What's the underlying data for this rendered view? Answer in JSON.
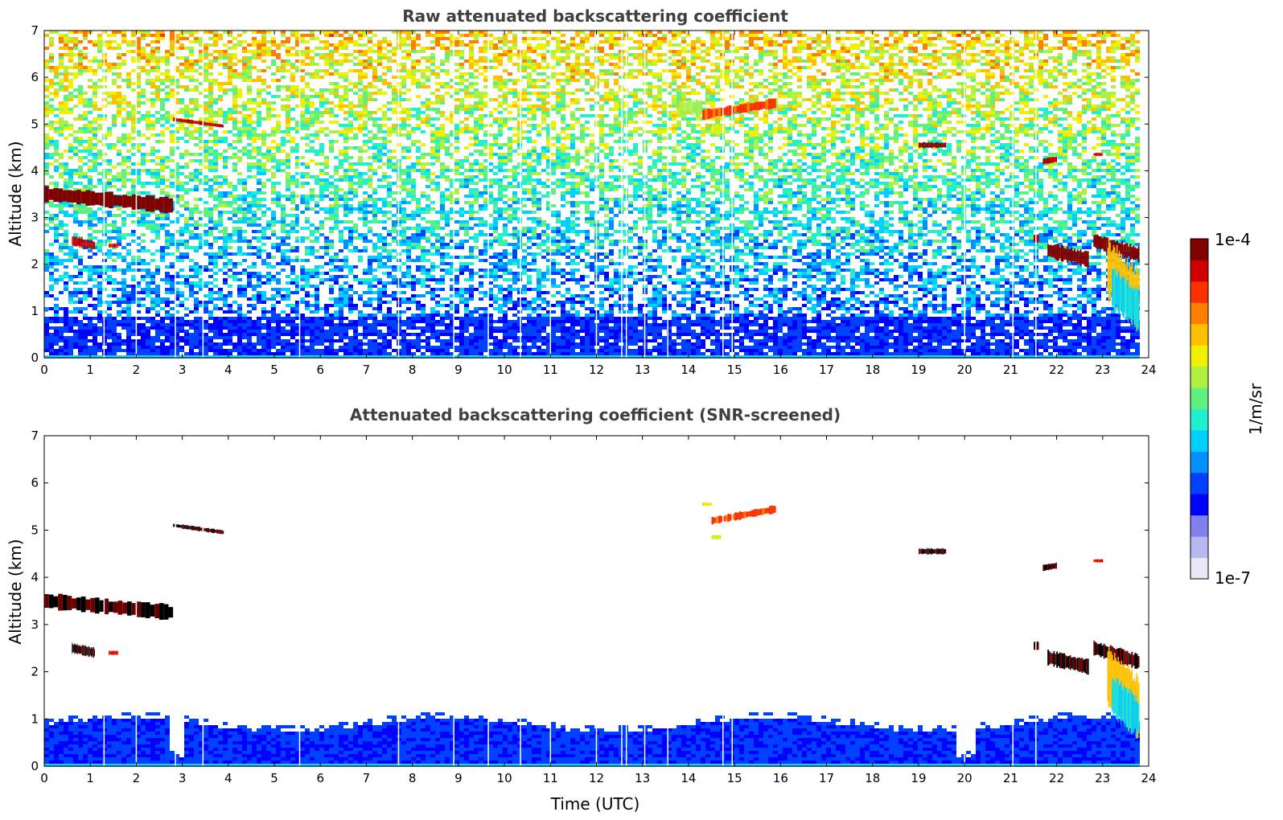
{
  "chart_data": [
    {
      "type": "heatmap",
      "title": "Raw attenuated backscattering coefficient",
      "xlabel": "",
      "ylabel": "Altitude (km)",
      "xlim": [
        0,
        24
      ],
      "ylim": [
        0,
        7
      ],
      "xticks": [
        "0",
        "1",
        "2",
        "3",
        "4",
        "5",
        "6",
        "7",
        "8",
        "9",
        "10",
        "11",
        "12",
        "13",
        "14",
        "15",
        "16",
        "17",
        "18",
        "19",
        "20",
        "21",
        "22",
        "23",
        "24"
      ],
      "yticks": [
        "0",
        "1",
        "2",
        "3",
        "4",
        "5",
        "6",
        "7"
      ],
      "screened": false,
      "features": [
        {
          "x0": 0.0,
          "x1": 2.8,
          "y_start": 3.5,
          "y_end": 3.25,
          "thickness": 0.3,
          "level": 1.0
        },
        {
          "x0": 0.6,
          "x1": 1.1,
          "y_start": 2.5,
          "y_end": 2.4,
          "thickness": 0.2,
          "level": 0.95
        },
        {
          "x0": 1.4,
          "x1": 1.6,
          "y_start": 2.4,
          "y_end": 2.4,
          "thickness": 0.08,
          "level": 0.9
        },
        {
          "x0": 2.8,
          "x1": 3.9,
          "y_start": 5.1,
          "y_end": 4.95,
          "thickness": 0.08,
          "level": 0.95
        },
        {
          "x0": 14.3,
          "x1": 15.9,
          "y_start": 5.2,
          "y_end": 5.45,
          "thickness": 0.2,
          "level": 0.85
        },
        {
          "x0": 13.8,
          "x1": 14.3,
          "y_start": 5.35,
          "y_end": 5.35,
          "thickness": 0.3,
          "level": 0.6
        },
        {
          "x0": 14.5,
          "x1": 14.8,
          "y_start": 4.9,
          "y_end": 4.9,
          "thickness": 0.2,
          "level": 0.65
        },
        {
          "x0": 19.0,
          "x1": 19.6,
          "y_start": 4.55,
          "y_end": 4.55,
          "thickness": 0.12,
          "level": 1.0
        },
        {
          "x0": 21.7,
          "x1": 22.0,
          "y_start": 4.2,
          "y_end": 4.25,
          "thickness": 0.12,
          "level": 0.95
        },
        {
          "x0": 22.8,
          "x1": 23.0,
          "y_start": 4.35,
          "y_end": 4.35,
          "thickness": 0.06,
          "level": 0.9
        },
        {
          "x0": 21.8,
          "x1": 22.7,
          "y_start": 2.3,
          "y_end": 2.1,
          "thickness": 0.3,
          "level": 1.0
        },
        {
          "x0": 21.5,
          "x1": 21.6,
          "y_start": 2.55,
          "y_end": 2.55,
          "thickness": 0.15,
          "level": 0.95
        },
        {
          "x0": 22.8,
          "x1": 23.8,
          "y_start": 2.5,
          "y_end": 2.2,
          "thickness": 0.3,
          "level": 1.0
        },
        {
          "x0": 23.1,
          "x1": 23.8,
          "y_start": 1.9,
          "y_end": 1.2,
          "thickness": 1.2,
          "level": 0.75
        },
        {
          "x0": 23.2,
          "x1": 23.8,
          "y_start": 1.5,
          "y_end": 1.0,
          "thickness": 0.8,
          "level": 0.45
        }
      ]
    },
    {
      "type": "heatmap",
      "title": "Attenuated backscattering coefficient (SNR-screened)",
      "xlabel": "Time (UTC)",
      "ylabel": "Altitude (km)",
      "xlim": [
        0,
        24
      ],
      "ylim": [
        0,
        7
      ],
      "xticks": [
        "0",
        "1",
        "2",
        "3",
        "4",
        "5",
        "6",
        "7",
        "8",
        "9",
        "10",
        "11",
        "12",
        "13",
        "14",
        "15",
        "16",
        "17",
        "18",
        "19",
        "20",
        "21",
        "22",
        "23",
        "24"
      ],
      "yticks": [
        "0",
        "1",
        "2",
        "3",
        "4",
        "5",
        "6",
        "7"
      ],
      "screened": true,
      "features": [
        {
          "x0": 0.0,
          "x1": 2.8,
          "y_start": 3.5,
          "y_end": 3.25,
          "thickness": 0.3,
          "level": 1.0
        },
        {
          "x0": 0.6,
          "x1": 1.1,
          "y_start": 2.5,
          "y_end": 2.4,
          "thickness": 0.2,
          "level": 0.95
        },
        {
          "x0": 1.4,
          "x1": 1.6,
          "y_start": 2.4,
          "y_end": 2.4,
          "thickness": 0.08,
          "level": 0.9
        },
        {
          "x0": 2.8,
          "x1": 3.9,
          "y_start": 5.1,
          "y_end": 4.95,
          "thickness": 0.08,
          "level": 0.95
        },
        {
          "x0": 14.5,
          "x1": 15.9,
          "y_start": 5.2,
          "y_end": 5.45,
          "thickness": 0.15,
          "level": 0.85
        },
        {
          "x0": 14.3,
          "x1": 14.5,
          "y_start": 5.55,
          "y_end": 5.55,
          "thickness": 0.06,
          "level": 0.7
        },
        {
          "x0": 14.5,
          "x1": 14.7,
          "y_start": 4.85,
          "y_end": 4.85,
          "thickness": 0.08,
          "level": 0.65
        },
        {
          "x0": 19.0,
          "x1": 19.6,
          "y_start": 4.55,
          "y_end": 4.55,
          "thickness": 0.12,
          "level": 1.0
        },
        {
          "x0": 21.7,
          "x1": 22.0,
          "y_start": 4.2,
          "y_end": 4.25,
          "thickness": 0.12,
          "level": 0.95
        },
        {
          "x0": 22.8,
          "x1": 23.0,
          "y_start": 4.35,
          "y_end": 4.35,
          "thickness": 0.06,
          "level": 0.9
        },
        {
          "x0": 21.8,
          "x1": 22.7,
          "y_start": 2.3,
          "y_end": 2.1,
          "thickness": 0.3,
          "level": 1.0
        },
        {
          "x0": 21.5,
          "x1": 21.6,
          "y_start": 2.55,
          "y_end": 2.55,
          "thickness": 0.15,
          "level": 0.95
        },
        {
          "x0": 22.8,
          "x1": 23.8,
          "y_start": 2.5,
          "y_end": 2.2,
          "thickness": 0.3,
          "level": 1.0
        },
        {
          "x0": 23.1,
          "x1": 23.8,
          "y_start": 1.9,
          "y_end": 1.2,
          "thickness": 1.2,
          "level": 0.75
        },
        {
          "x0": 23.2,
          "x1": 23.8,
          "y_start": 1.5,
          "y_end": 1.0,
          "thickness": 0.8,
          "level": 0.45
        }
      ]
    }
  ],
  "colorbar": {
    "label": "1/m/sr",
    "min_label": "1e-7",
    "max_label": "1e-4",
    "colors": [
      "#e8e8f8",
      "#b8b8f0",
      "#8080f0",
      "#0000ff",
      "#0040ff",
      "#0090ff",
      "#00d0ff",
      "#20f0d0",
      "#60f080",
      "#b0f040",
      "#f0f000",
      "#ffc000",
      "#ff8000",
      "#ff3000",
      "#d00000",
      "#800000"
    ]
  },
  "data_gaps_utc": [
    1.3,
    2.0,
    2.85,
    3.45,
    5.55,
    7.7,
    8.9,
    9.65,
    10.35,
    11.0,
    12.0,
    12.55,
    12.65,
    13.05,
    13.55,
    14.75,
    14.95,
    20.0,
    21.05,
    21.55
  ]
}
